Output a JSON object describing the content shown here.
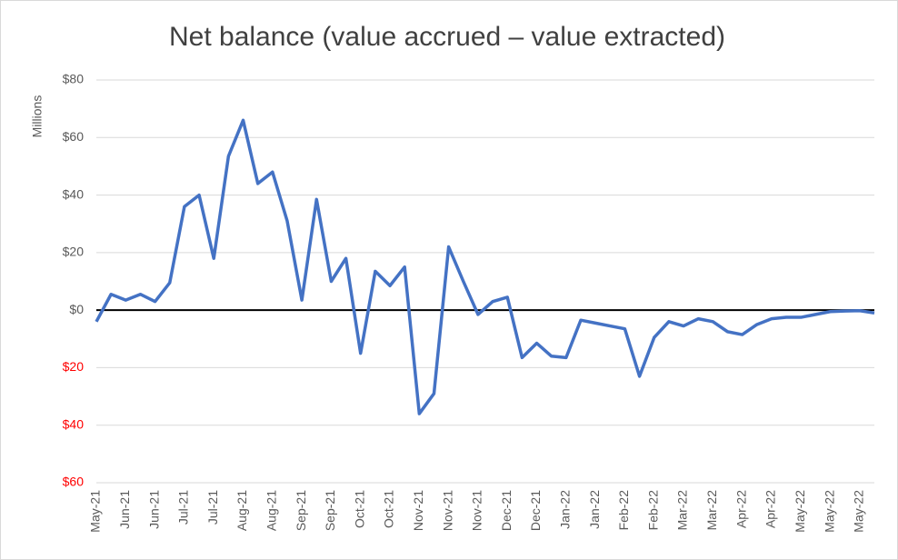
{
  "chart_data": {
    "type": "line",
    "title": "Net balance (value accrued – value extracted)",
    "y_label": "Millions",
    "categories": [
      "May-21",
      null,
      "Jun-21",
      null,
      "Jun-21",
      null,
      "Jul-21",
      null,
      "Jul-21",
      null,
      "Aug-21",
      null,
      "Aug-21",
      null,
      "Sep-21",
      null,
      "Sep-21",
      null,
      "Oct-21",
      null,
      "Oct-21",
      null,
      "Nov-21",
      null,
      "Nov-21",
      null,
      "Nov-21",
      null,
      "Dec-21",
      null,
      "Dec-21",
      null,
      "Jan-22",
      null,
      "Jan-22",
      null,
      "Feb-22",
      null,
      "Feb-22",
      null,
      "Mar-22",
      null,
      "Mar-22",
      null,
      "Apr-22",
      null,
      "Apr-22",
      null,
      "May-22",
      null,
      "May-22",
      null,
      "May-22",
      null
    ],
    "series": [
      {
        "name": "Net balance",
        "color": "#4472c4",
        "values": [
          -4,
          5.5,
          3.5,
          5.5,
          3,
          9.5,
          36,
          40,
          18,
          53.5,
          66,
          44,
          48,
          31,
          3.5,
          38.5,
          10,
          18,
          -15,
          13.5,
          8.5,
          15,
          -36,
          -29,
          22,
          10,
          -1.5,
          3,
          4.5,
          -16.5,
          -11.5,
          -16,
          -16.5,
          -3.5,
          -4.5,
          -5.5,
          -6.5,
          -23,
          -9.5,
          -4,
          -5.5,
          -3,
          -4,
          -7.5,
          -8.5,
          -5,
          -3,
          -2.5,
          -2.5,
          -1.5,
          -0.5,
          -0.3,
          -0.2,
          -1
        ]
      }
    ],
    "ylim": [
      -60,
      80
    ],
    "yticks": [
      {
        "value": -60,
        "label": "$60"
      },
      {
        "value": -40,
        "label": "$40"
      },
      {
        "value": -20,
        "label": "$20"
      },
      {
        "value": 0,
        "label": "$0"
      },
      {
        "value": 20,
        "label": "$20"
      },
      {
        "value": 40,
        "label": "$40"
      },
      {
        "value": 60,
        "label": "$60"
      },
      {
        "value": 80,
        "label": "$80"
      }
    ],
    "negative_tick_color": "#ff0000",
    "zero_line_color": "#000000",
    "grid": true
  }
}
